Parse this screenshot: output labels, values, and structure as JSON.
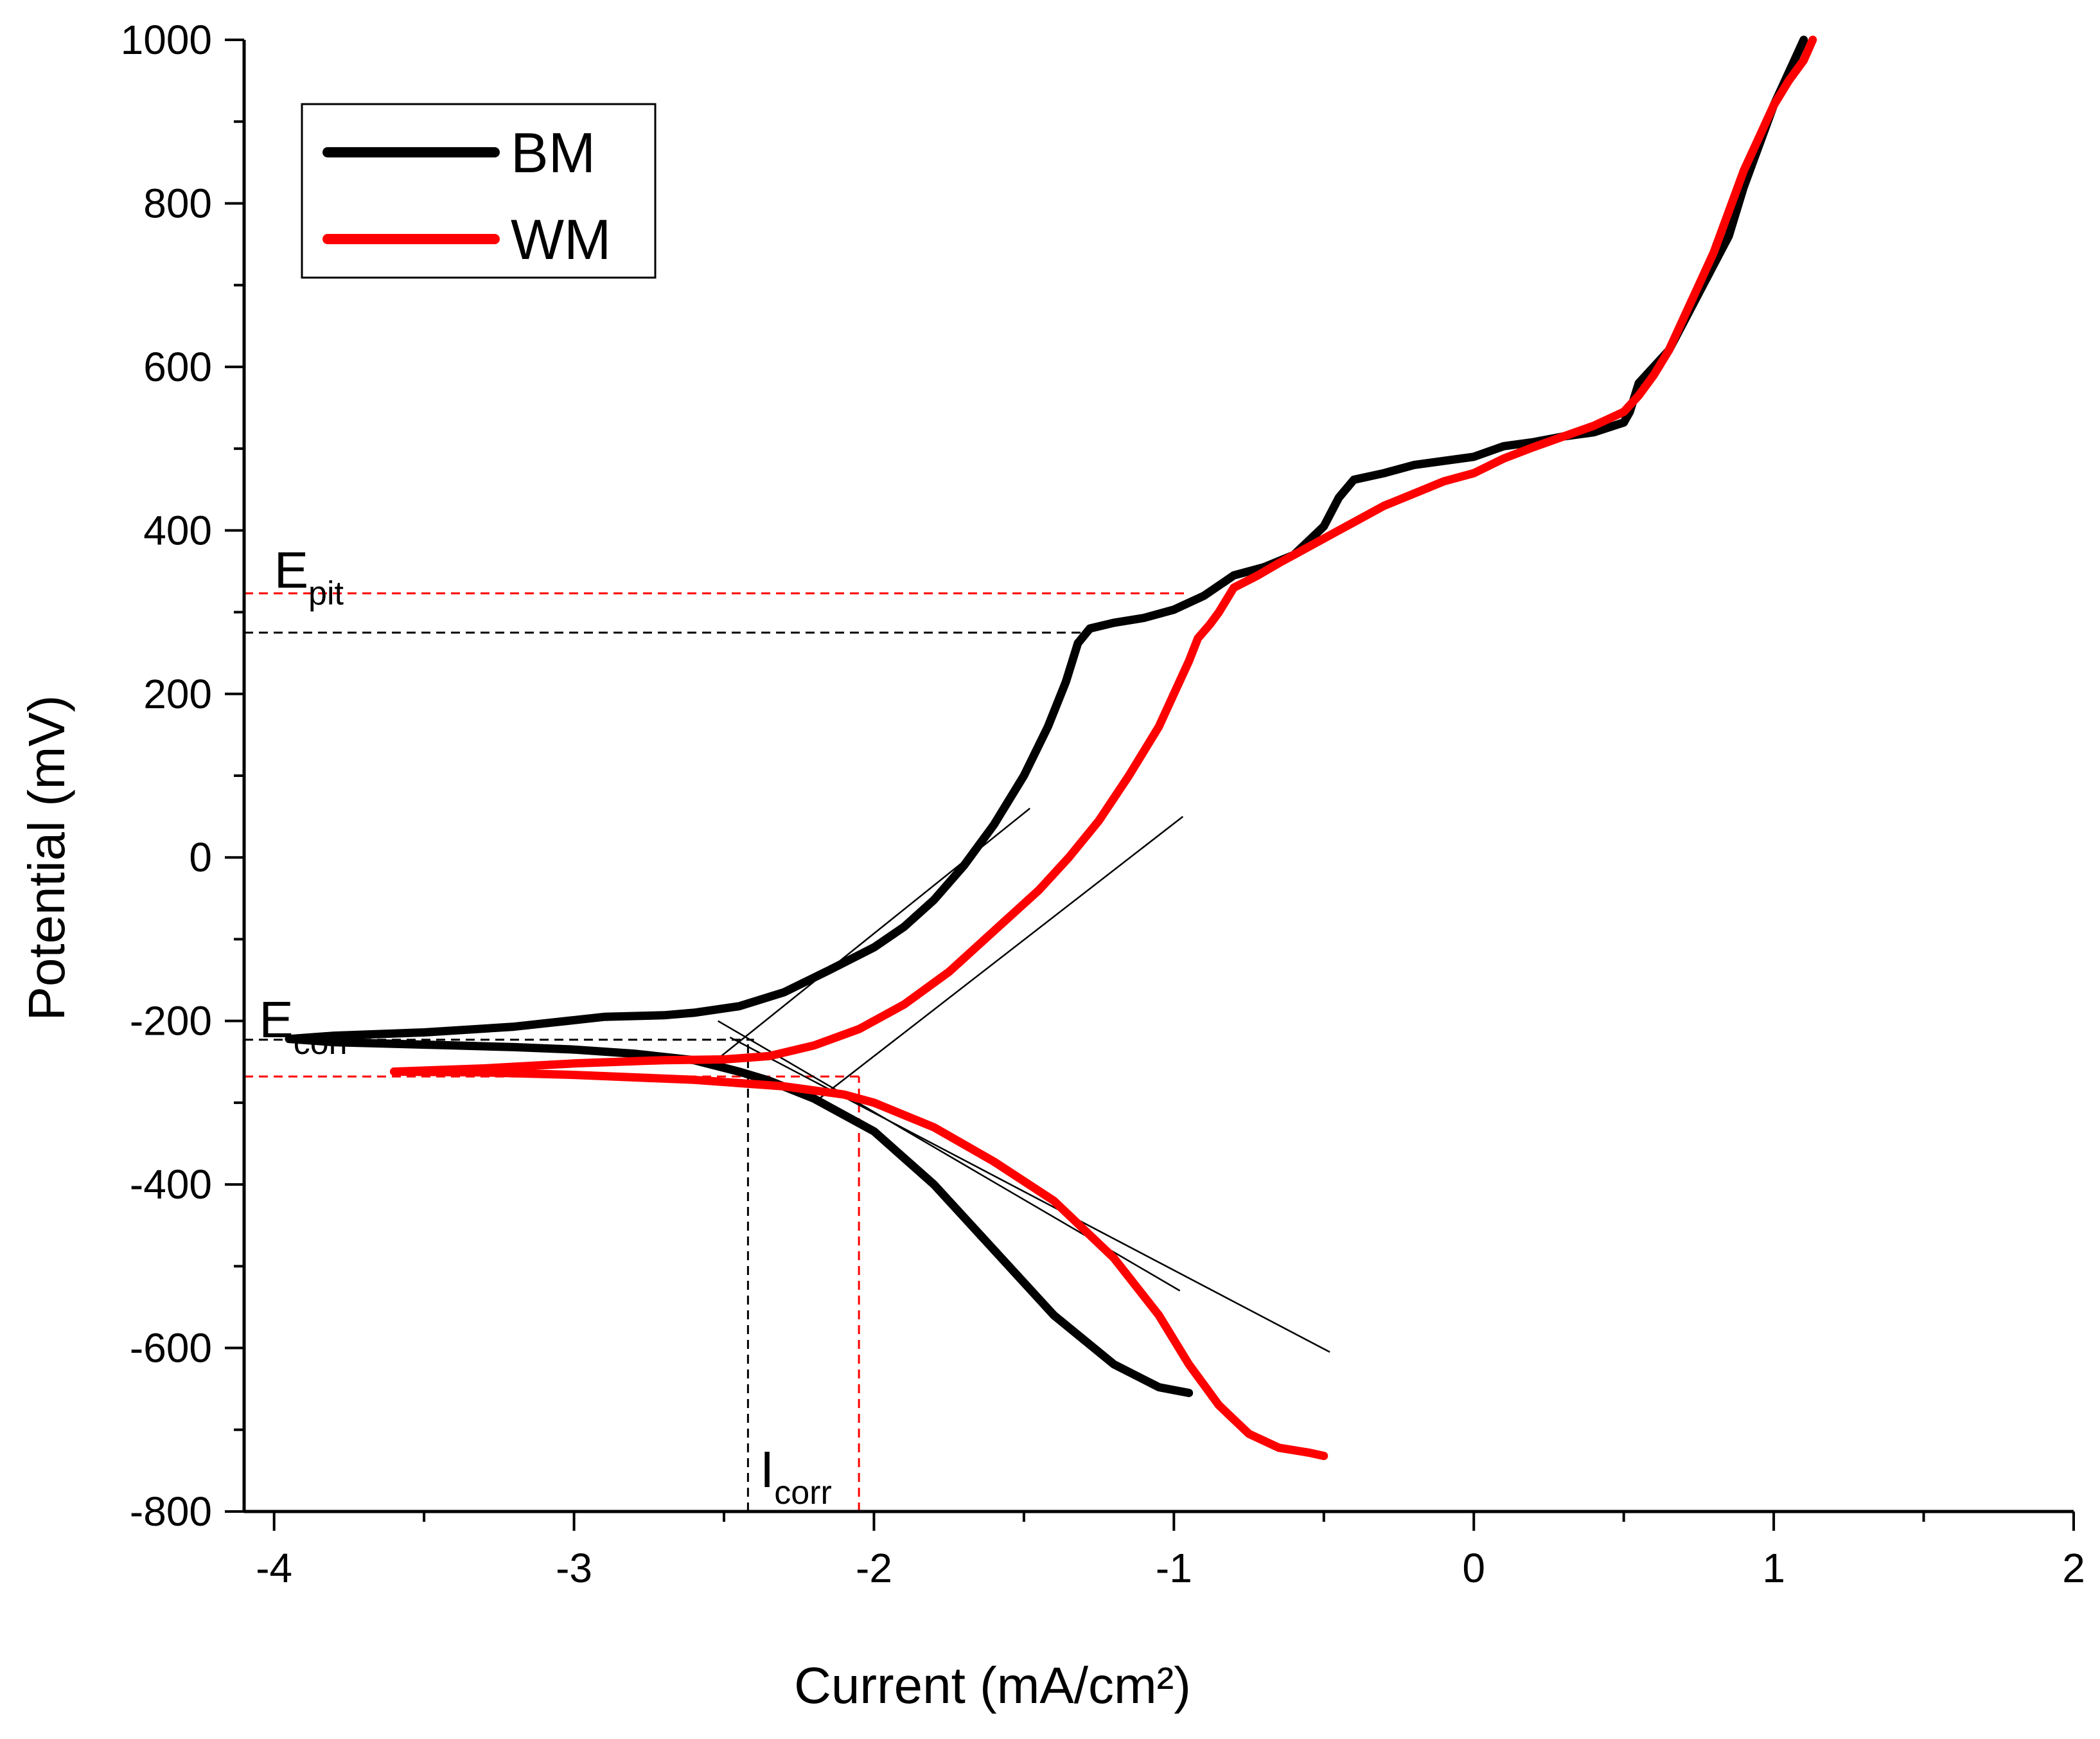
{
  "chart_data": {
    "type": "line",
    "title": "",
    "xlabel": "Current (mA/cm²)",
    "ylabel": "Potential (mV)",
    "xlim": [
      -4.1,
      2.0
    ],
    "ylim": [
      -800,
      1000
    ],
    "xticks": [
      -4,
      -3,
      -2,
      -1,
      0,
      1,
      2
    ],
    "yticks": [
      -800,
      -600,
      -400,
      -200,
      0,
      200,
      400,
      600,
      800,
      1000
    ],
    "legend_position": "top-left",
    "colors": {
      "BM": "#000000",
      "WM": "#ff0000"
    },
    "series": [
      {
        "name": "BM",
        "color": "#000000",
        "x": [
          -0.95,
          -1.05,
          -1.2,
          -1.4,
          -1.6,
          -1.8,
          -2.0,
          -2.2,
          -2.35,
          -2.45,
          -2.6,
          -2.8,
          -3.0,
          -3.2,
          -3.4,
          -3.6,
          -3.8,
          -3.95,
          -3.8,
          -3.5,
          -3.2,
          -3.0,
          -2.9,
          -2.7,
          -2.6,
          -2.45,
          -2.3,
          -2.15,
          -2.0,
          -1.9,
          -1.8,
          -1.7,
          -1.6,
          -1.5,
          -1.42,
          -1.36,
          -1.32,
          -1.28,
          -1.2,
          -1.1,
          -1.0,
          -0.9,
          -0.8,
          -0.7,
          -0.6,
          -0.5,
          -0.45,
          -0.4,
          -0.3,
          -0.2,
          -0.1,
          0.0,
          0.1,
          0.2,
          0.3,
          0.4,
          0.5,
          0.52,
          0.55,
          0.65,
          0.75,
          0.85,
          0.9,
          0.95,
          1.0,
          1.05,
          1.1
        ],
        "y": [
          -655,
          -648,
          -620,
          -560,
          -480,
          -400,
          -335,
          -295,
          -273,
          -262,
          -248,
          -240,
          -235,
          -232,
          -230,
          -228,
          -226,
          -222,
          -218,
          -214,
          -207,
          -199,
          -195,
          -193,
          -190,
          -182,
          -165,
          -138,
          -110,
          -85,
          -52,
          -10,
          40,
          100,
          160,
          215,
          262,
          280,
          287,
          293,
          303,
          320,
          345,
          355,
          370,
          405,
          440,
          462,
          470,
          480,
          485,
          490,
          503,
          508,
          515,
          520,
          532,
          545,
          580,
          620,
          690,
          760,
          820,
          870,
          920,
          960,
          1000
        ]
      },
      {
        "name": "WM",
        "color": "#ff0000",
        "x": [
          -0.5,
          -0.55,
          -0.65,
          -0.75,
          -0.85,
          -0.95,
          -1.05,
          -1.2,
          -1.4,
          -1.6,
          -1.8,
          -2.0,
          -2.1,
          -2.3,
          -2.6,
          -3.0,
          -3.3,
          -3.6,
          -3.3,
          -3.0,
          -2.7,
          -2.5,
          -2.35,
          -2.2,
          -2.05,
          -1.9,
          -1.75,
          -1.6,
          -1.45,
          -1.35,
          -1.25,
          -1.15,
          -1.05,
          -1.0,
          -0.95,
          -0.92,
          -0.88,
          -0.85,
          -0.8,
          -0.72,
          -0.65,
          -0.55,
          -0.45,
          -0.4,
          -0.3,
          -0.2,
          -0.1,
          0.0,
          0.1,
          0.2,
          0.3,
          0.4,
          0.5,
          0.55,
          0.6,
          0.65,
          0.7,
          0.75,
          0.8,
          0.85,
          0.9,
          0.95,
          1.0,
          1.05,
          1.1,
          1.13
        ],
        "y": [
          -732,
          -728,
          -722,
          -705,
          -670,
          -620,
          -560,
          -490,
          -420,
          -372,
          -330,
          -300,
          -290,
          -280,
          -272,
          -266,
          -263,
          -262,
          -258,
          -252,
          -248,
          -247,
          -243,
          -230,
          -210,
          -180,
          -140,
          -90,
          -40,
          0,
          45,
          100,
          160,
          200,
          240,
          268,
          285,
          300,
          330,
          345,
          360,
          380,
          400,
          410,
          430,
          445,
          460,
          470,
          488,
          502,
          515,
          528,
          545,
          565,
          590,
          620,
          660,
          700,
          740,
          790,
          840,
          880,
          920,
          950,
          975,
          1000
        ]
      }
    ],
    "tangent_lines": [
      {
        "x": [
          -2.55,
          -1.48
        ],
        "y": [
          -255,
          60
        ]
      },
      {
        "x": [
          -2.52,
          -0.98
        ],
        "y": [
          -200,
          -530
        ]
      },
      {
        "x": [
          -2.2,
          -0.97
        ],
        "y": [
          -300,
          50
        ]
      },
      {
        "x": [
          -2.48,
          -0.48
        ],
        "y": [
          -220,
          -605
        ]
      }
    ],
    "reference_lines": [
      {
        "name": "Epit-BM",
        "color": "#000000",
        "y": 275,
        "x_from": -4.1,
        "x_to": -1.3
      },
      {
        "name": "Epit-WM",
        "color": "#ff0000",
        "y": 323,
        "x_from": -4.1,
        "x_to": -0.95
      },
      {
        "name": "Ecorr-BM",
        "color": "#000000",
        "y": -223,
        "x_from": -4.1,
        "x_to": -2.4
      },
      {
        "name": "Ecorr-WM",
        "color": "#ff0000",
        "y": -268,
        "x_from": -4.1,
        "x_to": -2.05
      },
      {
        "name": "Icorr-BM",
        "color": "#000000",
        "x": -2.42,
        "y_from": -800,
        "y_to": -223
      },
      {
        "name": "Icorr-WM",
        "color": "#ff0000",
        "x": -2.05,
        "y_from": -800,
        "y_to": -268
      }
    ],
    "annotations": [
      {
        "main": "E",
        "sub": "pit",
        "x": -4.0,
        "y": 330
      },
      {
        "main": "E",
        "sub": "corr",
        "x": -4.05,
        "y": -220
      },
      {
        "main": "I",
        "sub": "corr",
        "x": -2.38,
        "y": -770
      }
    ]
  }
}
